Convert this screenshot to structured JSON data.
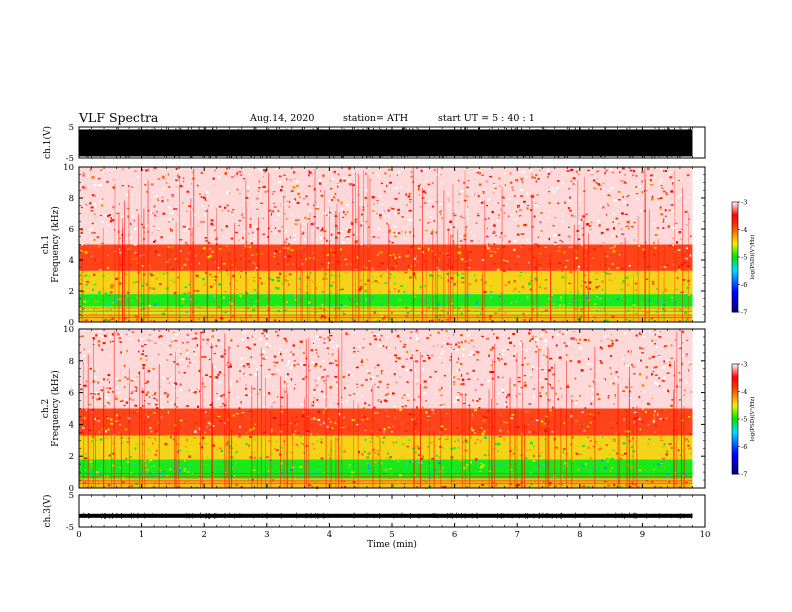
{
  "header": {
    "title": "VLF Spectra",
    "date": "Aug.14, 2020",
    "station": "station= ATH",
    "start": "start  UT =   5 : 40 : 1"
  },
  "chart_data": [
    {
      "type": "line",
      "panel": "ch1-waveform",
      "ylabel": "ch.1(V)",
      "ylim": [
        -5,
        5
      ],
      "yticks": [
        "5",
        "-5"
      ],
      "xlim": [
        0,
        10
      ],
      "note_values": "dense broadband waveform filling full range from 0 to ~9.8 min"
    },
    {
      "type": "heatmap",
      "panel": "ch1-spectrogram",
      "ylabel": "ch.1 Frequency (kHz)",
      "ylim": [
        0,
        10
      ],
      "yticks": [
        "0",
        "2",
        "4",
        "6",
        "8",
        "10"
      ],
      "xlim": [
        0,
        10
      ],
      "data_end_min": 9.8,
      "bands": [
        {
          "from_khz": 0.0,
          "to_khz": 0.5,
          "level": -4.3
        },
        {
          "from_khz": 0.5,
          "to_khz": 1.0,
          "level": -4.6
        },
        {
          "from_khz": 1.0,
          "to_khz": 1.8,
          "level": -5.0
        },
        {
          "from_khz": 1.8,
          "to_khz": 3.3,
          "level": -4.4
        },
        {
          "from_khz": 3.3,
          "to_khz": 5.0,
          "level": -3.8
        },
        {
          "from_khz": 5.0,
          "to_khz": 10.0,
          "level": -3.4
        }
      ],
      "colorbar": {
        "label": "log(PSD)(V²/Hz)",
        "range": [
          -7,
          -3
        ],
        "ticks": [
          "-3",
          "-4",
          "-5",
          "-6",
          "-7"
        ]
      }
    },
    {
      "type": "heatmap",
      "panel": "ch2-spectrogram",
      "ylabel": "ch.2 Frequency (kHz)",
      "ylim": [
        0,
        10
      ],
      "yticks": [
        "0",
        "2",
        "4",
        "6",
        "8",
        "10"
      ],
      "xlim": [
        0,
        10
      ],
      "data_end_min": 9.8,
      "bands": [
        {
          "from_khz": 0.0,
          "to_khz": 0.6,
          "level": -4.3
        },
        {
          "from_khz": 0.6,
          "to_khz": 1.8,
          "level": -5.0
        },
        {
          "from_khz": 1.8,
          "to_khz": 3.3,
          "level": -4.4
        },
        {
          "from_khz": 3.3,
          "to_khz": 5.0,
          "level": -3.8
        },
        {
          "from_khz": 5.0,
          "to_khz": 10.0,
          "level": -3.4
        }
      ],
      "colorbar": {
        "label": "log(PSD)(V²/Hz)",
        "range": [
          -7,
          -3
        ],
        "ticks": [
          "-3",
          "-4",
          "-5",
          "-6",
          "-7"
        ]
      }
    },
    {
      "type": "line",
      "panel": "ch3-waveform",
      "ylabel": "ch.3(V)",
      "ylim": [
        -5,
        5
      ],
      "yticks": [
        "5",
        "-5"
      ],
      "xlim": [
        0,
        10
      ],
      "level_v": -1.5
    }
  ],
  "xaxis": {
    "label": "Time  (min)",
    "ticks": [
      "0",
      "1",
      "2",
      "3",
      "4",
      "5",
      "6",
      "7",
      "8",
      "9",
      "10"
    ]
  },
  "colors": {
    "frame": "#000000",
    "background": "#ffffff"
  }
}
